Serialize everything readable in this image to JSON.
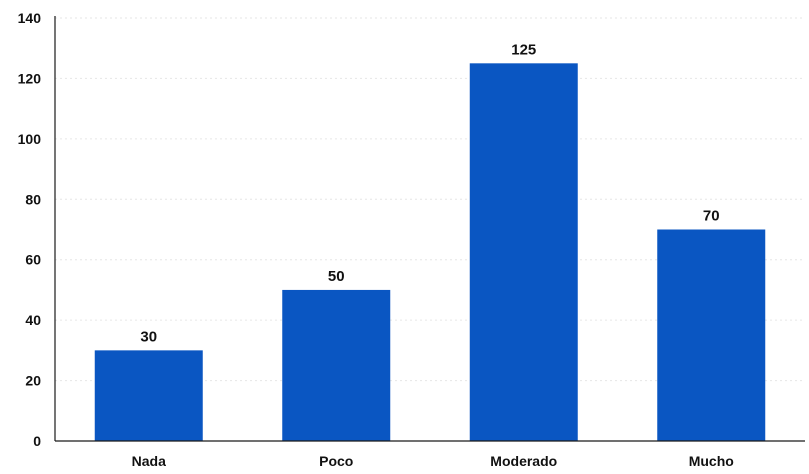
{
  "chart_data": {
    "type": "bar",
    "title": "",
    "xlabel": "",
    "ylabel": "",
    "categories": [
      "Nada",
      "Poco",
      "Moderado",
      "Mucho"
    ],
    "values": [
      30,
      50,
      125,
      70
    ],
    "data_labels": [
      "30",
      "50",
      "125",
      "70"
    ],
    "ylim": [
      0,
      140
    ],
    "yticks": [
      0,
      20,
      40,
      60,
      80,
      100,
      120,
      140
    ],
    "grid": true,
    "legend": "none",
    "bar_color": "#0A56C2"
  }
}
